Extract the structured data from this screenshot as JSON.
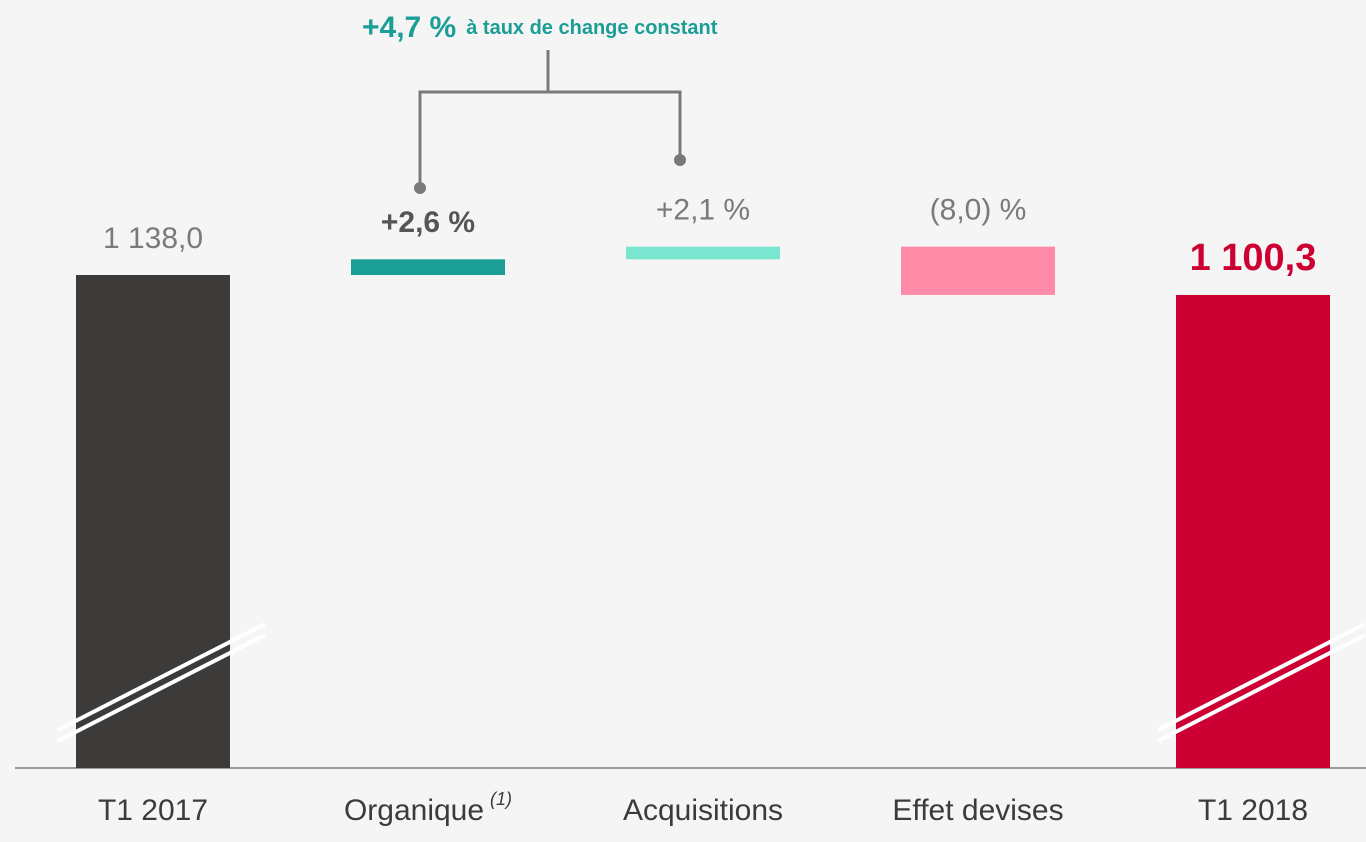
{
  "chart_data": {
    "type": "waterfall",
    "annotation": {
      "value_text": "+4,7 %",
      "text": "à taux de change constant"
    },
    "categories": [
      "T1 2017",
      "Organique",
      "Acquisitions",
      "Effet devises",
      "T1 2018"
    ],
    "organique_note": "(1)",
    "values": [
      1138.0,
      2.6,
      2.1,
      -8.0,
      1100.3
    ],
    "value_labels": [
      "1 138,0",
      "+2,6 %",
      "+2,1 %",
      "(8,0) %",
      "1 100,3"
    ],
    "colors": [
      "#3c3b39",
      "#1a9e96",
      "#7ae6cf",
      "#ff8aa8",
      "#cc0033"
    ]
  }
}
